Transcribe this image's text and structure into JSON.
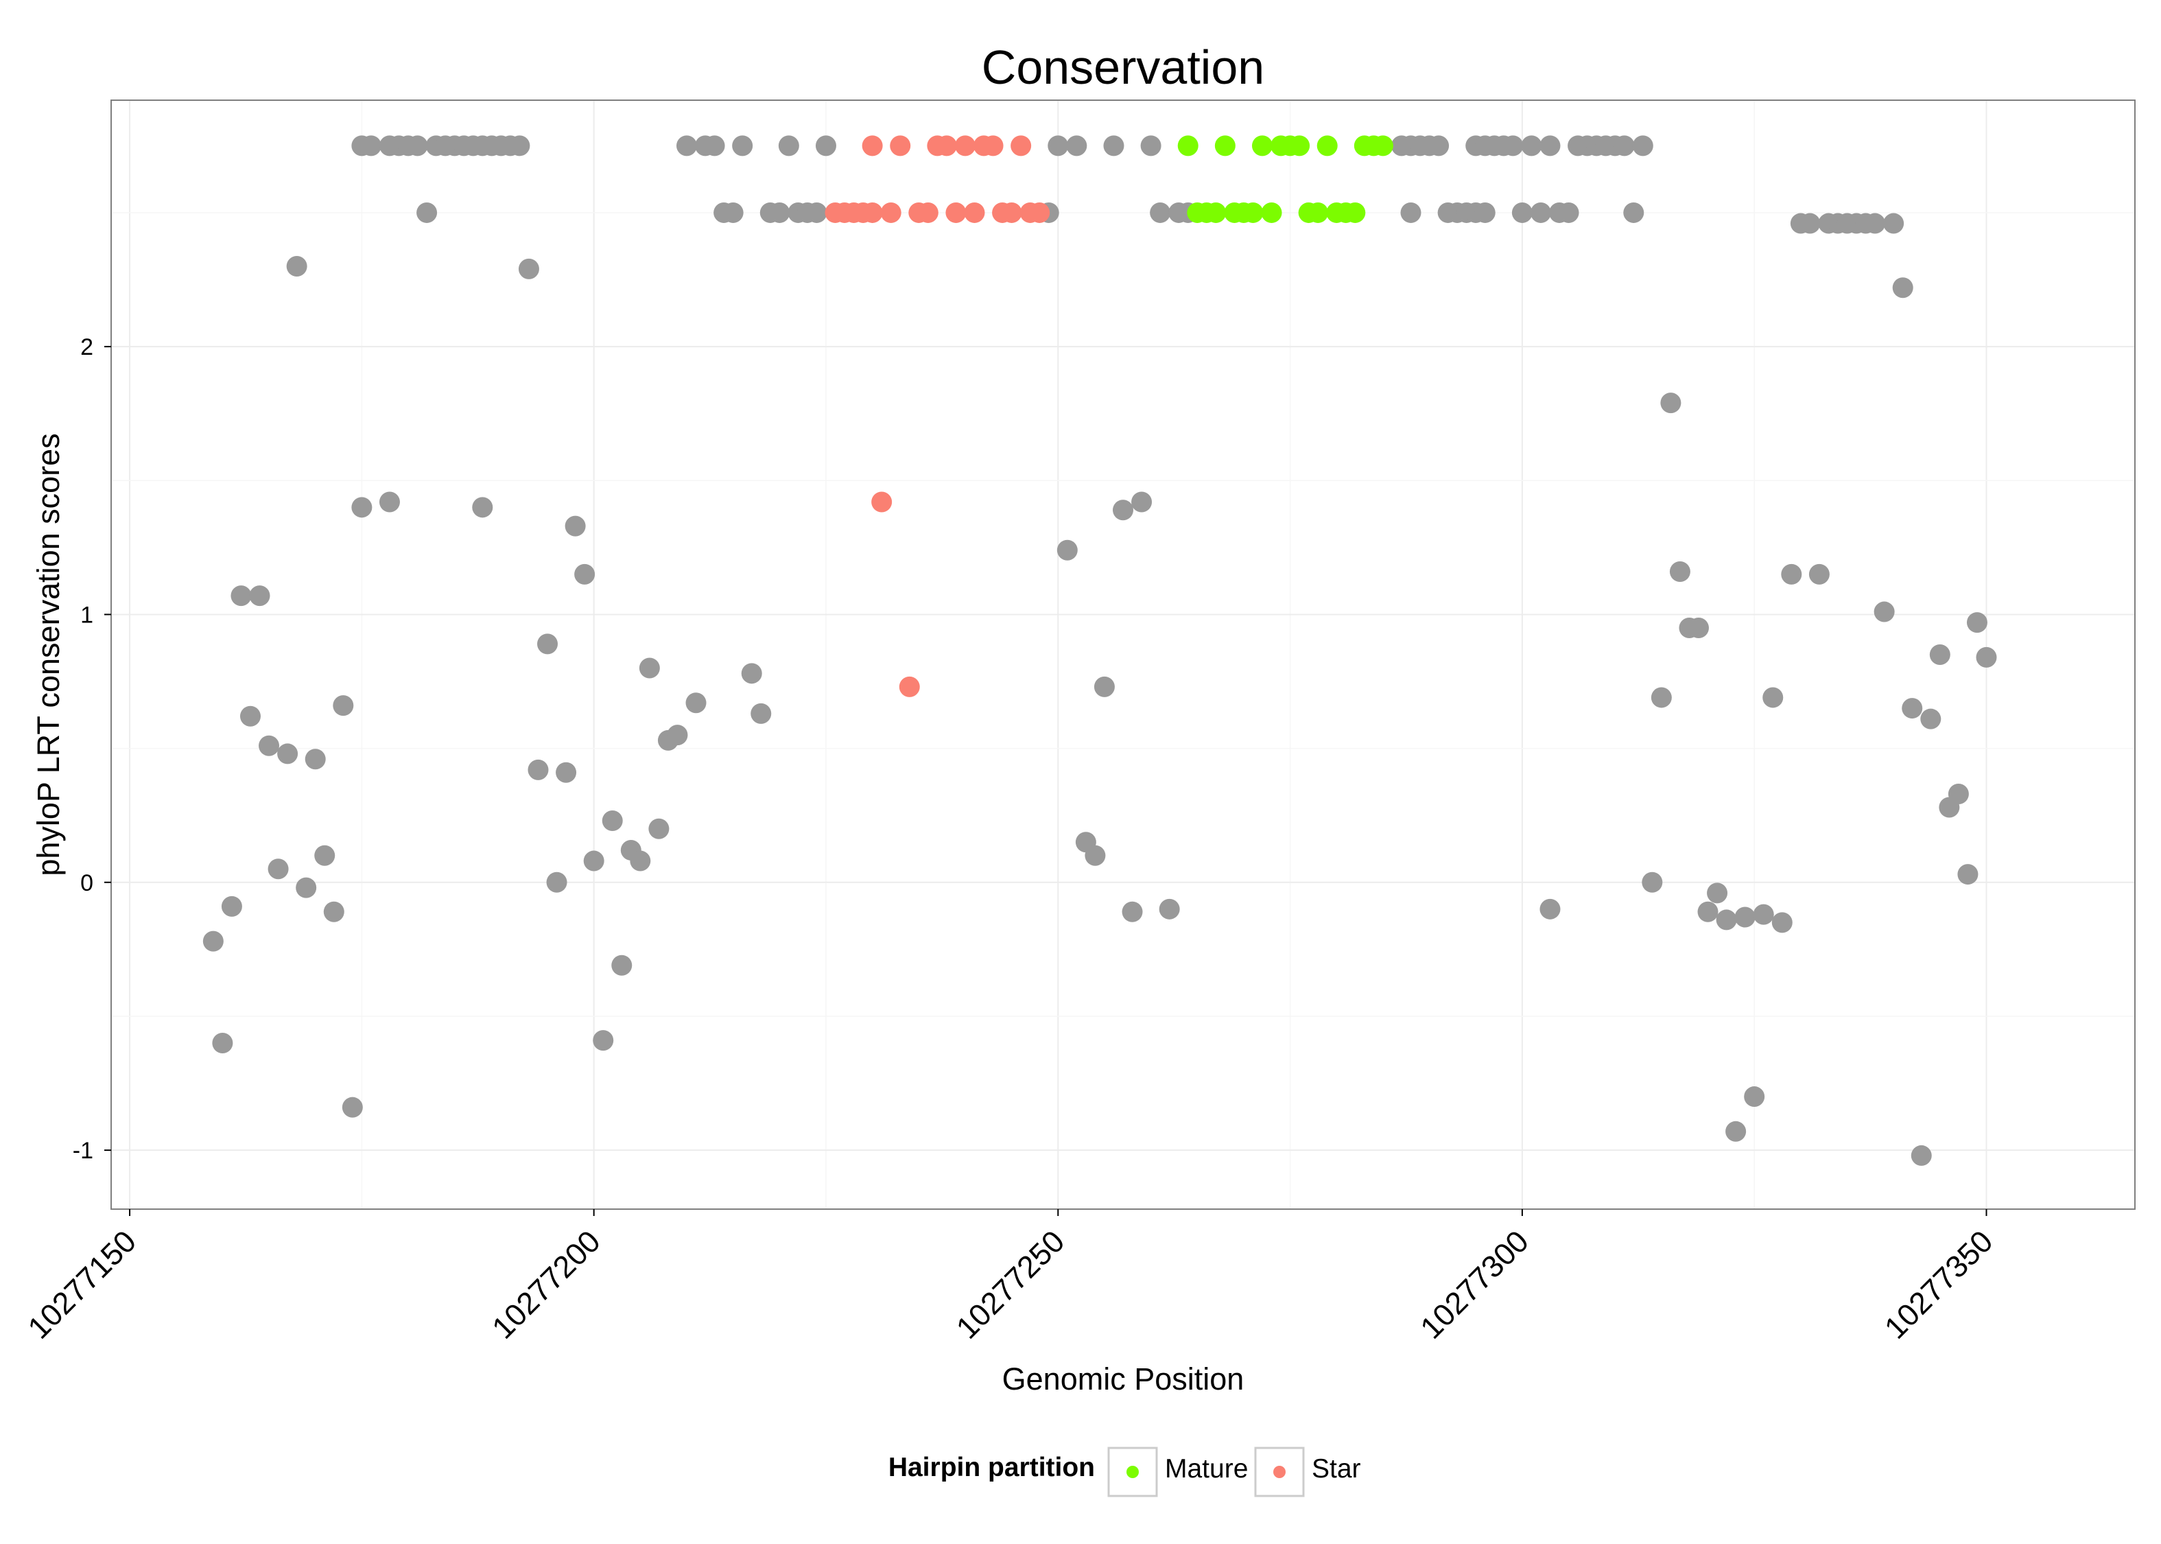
{
  "chart_data": {
    "type": "scatter",
    "title": "Conservation",
    "xlabel": "Genomic Position",
    "ylabel": "phyloP LRT conservation scores",
    "xlim": [
      10277148,
      10277366
    ],
    "ylim": [
      -1.22,
      2.92
    ],
    "x_ticks": [
      10277150,
      10277200,
      10277250,
      10277300,
      10277350
    ],
    "x_tick_labels": [
      "10277150",
      "10277200",
      "10277250",
      "10277300",
      "10277350"
    ],
    "y_ticks": [
      -1,
      0,
      1,
      2
    ],
    "y_tick_labels": [
      "-1",
      "0",
      "1",
      "2"
    ],
    "grid": true,
    "legend": {
      "title": "Hairpin partition",
      "position": "bottom",
      "entries": [
        {
          "label": "Mature",
          "color": "#7CFC00"
        },
        {
          "label": "Star",
          "color": "#FA8072"
        }
      ]
    },
    "colors": {
      "other": "#999999",
      "Mature": "#7CFC00",
      "Star": "#FA8072"
    },
    "series": [
      {
        "name": "",
        "color": "#999999",
        "points": [
          [
            10277159,
            -0.22
          ],
          [
            10277160,
            -0.6
          ],
          [
            10277161,
            -0.09
          ],
          [
            10277162,
            1.07
          ],
          [
            10277163,
            0.62
          ],
          [
            10277164,
            1.07
          ],
          [
            10277165,
            0.51
          ],
          [
            10277166,
            0.05
          ],
          [
            10277167,
            0.48
          ],
          [
            10277168,
            2.3
          ],
          [
            10277169,
            -0.02
          ],
          [
            10277170,
            0.46
          ],
          [
            10277171,
            0.1
          ],
          [
            10277172,
            -0.11
          ],
          [
            10277173,
            0.66
          ],
          [
            10277174,
            -0.84
          ],
          [
            10277175,
            1.4
          ],
          [
            10277175,
            2.75
          ],
          [
            10277176,
            2.75
          ],
          [
            10277178,
            1.42
          ],
          [
            10277178,
            2.75
          ],
          [
            10277179,
            2.75
          ],
          [
            10277180,
            2.75
          ],
          [
            10277181,
            2.75
          ],
          [
            10277182,
            2.5
          ],
          [
            10277183,
            2.75
          ],
          [
            10277184,
            2.75
          ],
          [
            10277185,
            2.75
          ],
          [
            10277186,
            2.75
          ],
          [
            10277187,
            2.75
          ],
          [
            10277188,
            2.75
          ],
          [
            10277188,
            1.4
          ],
          [
            10277189,
            2.75
          ],
          [
            10277190,
            2.75
          ],
          [
            10277191,
            2.75
          ],
          [
            10277192,
            2.75
          ],
          [
            10277193,
            2.29
          ],
          [
            10277194,
            0.42
          ],
          [
            10277195,
            0.89
          ],
          [
            10277196,
            0.0
          ],
          [
            10277197,
            0.41
          ],
          [
            10277198,
            1.33
          ],
          [
            10277199,
            1.15
          ],
          [
            10277200,
            0.08
          ],
          [
            10277201,
            -0.59
          ],
          [
            10277202,
            0.23
          ],
          [
            10277203,
            -0.31
          ],
          [
            10277204,
            0.12
          ],
          [
            10277205,
            0.08
          ],
          [
            10277206,
            0.8
          ],
          [
            10277207,
            0.2
          ],
          [
            10277208,
            0.53
          ],
          [
            10277209,
            0.55
          ],
          [
            10277210,
            2.75
          ],
          [
            10277211,
            0.67
          ],
          [
            10277212,
            2.75
          ],
          [
            10277213,
            2.75
          ],
          [
            10277214,
            2.5
          ],
          [
            10277215,
            2.5
          ],
          [
            10277216,
            2.75
          ],
          [
            10277217,
            0.78
          ],
          [
            10277218,
            0.63
          ],
          [
            10277219,
            2.5
          ],
          [
            10277220,
            2.5
          ],
          [
            10277221,
            2.75
          ],
          [
            10277222,
            2.5
          ],
          [
            10277223,
            2.5
          ],
          [
            10277224,
            2.5
          ],
          [
            10277225,
            2.75
          ],
          [
            10277249,
            2.5
          ],
          [
            10277250,
            2.75
          ],
          [
            10277251,
            1.24
          ],
          [
            10277252,
            2.75
          ],
          [
            10277253,
            0.15
          ],
          [
            10277254,
            0.1
          ],
          [
            10277255,
            0.73
          ],
          [
            10277256,
            2.75
          ],
          [
            10277257,
            1.39
          ],
          [
            10277258,
            -0.11
          ],
          [
            10277259,
            1.42
          ],
          [
            10277260,
            2.75
          ],
          [
            10277261,
            2.5
          ],
          [
            10277262,
            -0.1
          ],
          [
            10277263,
            2.5
          ],
          [
            10277264,
            2.5
          ],
          [
            10277287,
            2.75
          ],
          [
            10277288,
            2.75
          ],
          [
            10277288,
            2.5
          ],
          [
            10277289,
            2.75
          ],
          [
            10277290,
            2.75
          ],
          [
            10277291,
            2.75
          ],
          [
            10277292,
            2.5
          ],
          [
            10277293,
            2.5
          ],
          [
            10277294,
            2.5
          ],
          [
            10277295,
            2.5
          ],
          [
            10277296,
            2.5
          ],
          [
            10277295,
            2.75
          ],
          [
            10277296,
            2.75
          ],
          [
            10277297,
            2.75
          ],
          [
            10277298,
            2.75
          ],
          [
            10277299,
            2.75
          ],
          [
            10277300,
            2.5
          ],
          [
            10277301,
            2.75
          ],
          [
            10277302,
            2.5
          ],
          [
            10277303,
            2.75
          ],
          [
            10277303,
            -0.1
          ],
          [
            10277304,
            2.5
          ],
          [
            10277305,
            2.5
          ],
          [
            10277306,
            2.75
          ],
          [
            10277307,
            2.75
          ],
          [
            10277308,
            2.75
          ],
          [
            10277309,
            2.75
          ],
          [
            10277310,
            2.75
          ],
          [
            10277311,
            2.75
          ],
          [
            10277312,
            2.5
          ],
          [
            10277313,
            2.75
          ],
          [
            10277314,
            0.0
          ],
          [
            10277315,
            0.69
          ],
          [
            10277316,
            1.79
          ],
          [
            10277317,
            1.16
          ],
          [
            10277318,
            0.95
          ],
          [
            10277319,
            0.95
          ],
          [
            10277320,
            -0.11
          ],
          [
            10277321,
            -0.04
          ],
          [
            10277322,
            -0.14
          ],
          [
            10277323,
            -0.93
          ],
          [
            10277324,
            -0.13
          ],
          [
            10277325,
            -0.8
          ],
          [
            10277326,
            -0.12
          ],
          [
            10277327,
            0.69
          ],
          [
            10277328,
            -0.15
          ],
          [
            10277329,
            1.15
          ],
          [
            10277330,
            2.46
          ],
          [
            10277331,
            2.46
          ],
          [
            10277332,
            1.15
          ],
          [
            10277333,
            2.46
          ],
          [
            10277334,
            2.46
          ],
          [
            10277335,
            2.46
          ],
          [
            10277336,
            2.46
          ],
          [
            10277337,
            2.46
          ],
          [
            10277338,
            2.46
          ],
          [
            10277339,
            1.01
          ],
          [
            10277340,
            2.46
          ],
          [
            10277341,
            2.22
          ],
          [
            10277342,
            0.65
          ],
          [
            10277343,
            -1.02
          ],
          [
            10277344,
            0.61
          ],
          [
            10277345,
            0.85
          ],
          [
            10277346,
            0.28
          ],
          [
            10277347,
            0.33
          ],
          [
            10277348,
            0.03
          ],
          [
            10277349,
            0.97
          ],
          [
            10277350,
            0.84
          ]
        ]
      },
      {
        "name": "Star",
        "color": "#FA8072",
        "points": [
          [
            10277226,
            2.5
          ],
          [
            10277227,
            2.5
          ],
          [
            10277228,
            2.5
          ],
          [
            10277229,
            2.5
          ],
          [
            10277230,
            2.5
          ],
          [
            10277230,
            2.75
          ],
          [
            10277231,
            1.42
          ],
          [
            10277232,
            2.5
          ],
          [
            10277233,
            2.75
          ],
          [
            10277234,
            0.73
          ],
          [
            10277235,
            2.5
          ],
          [
            10277236,
            2.5
          ],
          [
            10277237,
            2.75
          ],
          [
            10277238,
            2.75
          ],
          [
            10277239,
            2.5
          ],
          [
            10277240,
            2.75
          ],
          [
            10277241,
            2.5
          ],
          [
            10277242,
            2.75
          ],
          [
            10277243,
            2.75
          ],
          [
            10277244,
            2.5
          ],
          [
            10277245,
            2.5
          ],
          [
            10277246,
            2.75
          ],
          [
            10277247,
            2.5
          ],
          [
            10277248,
            2.5
          ]
        ]
      },
      {
        "name": "Mature",
        "color": "#7CFC00",
        "points": [
          [
            10277264,
            2.75
          ],
          [
            10277265,
            2.5
          ],
          [
            10277266,
            2.5
          ],
          [
            10277267,
            2.5
          ],
          [
            10277268,
            2.75
          ],
          [
            10277269,
            2.5
          ],
          [
            10277270,
            2.5
          ],
          [
            10277271,
            2.5
          ],
          [
            10277272,
            2.75
          ],
          [
            10277273,
            2.5
          ],
          [
            10277274,
            2.75
          ],
          [
            10277275,
            2.75
          ],
          [
            10277276,
            2.75
          ],
          [
            10277277,
            2.5
          ],
          [
            10277278,
            2.5
          ],
          [
            10277279,
            2.75
          ],
          [
            10277280,
            2.5
          ],
          [
            10277281,
            2.5
          ],
          [
            10277282,
            2.5
          ],
          [
            10277283,
            2.75
          ],
          [
            10277284,
            2.75
          ],
          [
            10277285,
            2.75
          ]
        ]
      }
    ]
  }
}
